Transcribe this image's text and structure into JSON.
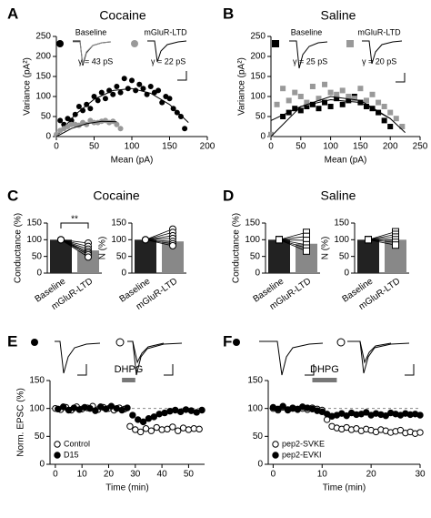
{
  "chart_data": [
    {
      "type": "scatter",
      "panel": "A",
      "title": "Cocaine",
      "xlabel": "Mean (pA)",
      "ylabel": "Variance (pA²)",
      "xlim": [
        0,
        200
      ],
      "xticks": [
        0,
        50,
        100,
        150,
        200
      ],
      "ylim": [
        0,
        250
      ],
      "yticks": [
        0,
        50,
        100,
        150,
        200,
        250
      ],
      "marker": "circle",
      "series": [
        {
          "name": "Baseline",
          "color": "#000000",
          "annotation": "γ = 43 pS",
          "x": [
            5,
            10,
            15,
            20,
            25,
            30,
            35,
            40,
            45,
            50,
            55,
            60,
            65,
            70,
            75,
            80,
            85,
            90,
            95,
            100,
            105,
            110,
            115,
            120,
            125,
            130,
            135,
            140,
            145,
            150,
            155,
            160,
            165,
            170
          ],
          "values": [
            40,
            30,
            45,
            40,
            55,
            75,
            65,
            80,
            70,
            100,
            90,
            110,
            95,
            115,
            105,
            125,
            110,
            145,
            120,
            140,
            115,
            130,
            120,
            105,
            125,
            110,
            115,
            85,
            100,
            95,
            70,
            60,
            50,
            20
          ],
          "fit": {
            "x": [
              0,
              25,
              50,
              75,
              100,
              125,
              150,
              175
            ],
            "values": [
              0,
              55,
              93,
              115,
              120,
              108,
              80,
              35
            ]
          }
        },
        {
          "name": "mGluR-LTD",
          "color": "#999999",
          "annotation": "γ = 22 pS",
          "x": [
            0,
            5,
            10,
            15,
            20,
            25,
            30,
            35,
            40,
            45,
            50,
            55,
            60,
            65,
            70,
            75,
            80,
            85
          ],
          "values": [
            5,
            15,
            20,
            25,
            30,
            30,
            28,
            35,
            30,
            40,
            35,
            35,
            38,
            40,
            35,
            38,
            30,
            20
          ],
          "fit": {
            "x": [
              0,
              20,
              40,
              60,
              80
            ],
            "values": [
              0,
              20,
              32,
              38,
              37
            ]
          }
        }
      ]
    },
    {
      "type": "scatter",
      "panel": "B",
      "title": "Saline",
      "xlabel": "Mean (pA)",
      "ylabel": "Variance (pA²)",
      "xlim": [
        0,
        250
      ],
      "xticks": [
        0,
        50,
        100,
        150,
        200,
        250
      ],
      "ylim": [
        0,
        250
      ],
      "yticks": [
        0,
        50,
        100,
        150,
        200,
        250
      ],
      "marker": "square",
      "series": [
        {
          "name": "Baseline",
          "color": "#000000",
          "annotation": "γ = 25 pS",
          "x": [
            20,
            30,
            40,
            50,
            60,
            70,
            80,
            90,
            100,
            110,
            120,
            130,
            140,
            150,
            160,
            170,
            180,
            190,
            200
          ],
          "values": [
            50,
            60,
            70,
            65,
            75,
            80,
            70,
            85,
            75,
            95,
            80,
            90,
            100,
            85,
            75,
            70,
            60,
            40,
            25
          ],
          "fit": {
            "x": [
              0,
              50,
              100,
              150,
              200
            ],
            "values": [
              40,
              75,
              92,
              85,
              45
            ]
          }
        },
        {
          "name": "mGluR-LTD",
          "color": "#999999",
          "annotation": "γ = 20 pS",
          "x": [
            0,
            10,
            20,
            30,
            40,
            50,
            60,
            70,
            80,
            90,
            100,
            110,
            120,
            130,
            140,
            150,
            160,
            170,
            180,
            190,
            200,
            210,
            220
          ],
          "values": [
            5,
            80,
            120,
            90,
            110,
            100,
            85,
            125,
            95,
            130,
            110,
            105,
            115,
            100,
            95,
            120,
            90,
            105,
            85,
            75,
            60,
            45,
            25
          ],
          "fit": {
            "x": [
              0,
              50,
              100,
              150,
              200,
              225
            ],
            "values": [
              0,
              75,
              100,
              90,
              45,
              10
            ]
          }
        }
      ]
    },
    {
      "type": "bar",
      "panel": "C",
      "title": "Cocaine",
      "ylabel": "Conductance (%)",
      "categories": [
        "Baseline",
        "mGluR-LTD"
      ],
      "values": [
        100,
        68
      ],
      "colors": [
        "#222222",
        "#888888"
      ],
      "ylim": [
        0,
        150
      ],
      "yticks": [
        0,
        50,
        100,
        150
      ],
      "marker": "circle",
      "annotation": "**",
      "paired": {
        "before": [
          100,
          100,
          100,
          100,
          100,
          100,
          100
        ],
        "after": [
          90,
          80,
          72,
          65,
          60,
          55,
          48
        ]
      }
    },
    {
      "type": "bar",
      "ylabel": "N (%)",
      "categories": [
        "Baseline",
        "mGluR-LTD"
      ],
      "values": [
        100,
        95
      ],
      "colors": [
        "#222222",
        "#888888"
      ],
      "ylim": [
        0,
        150
      ],
      "yticks": [
        0,
        50,
        100,
        150
      ],
      "marker": "circle",
      "paired": {
        "before": [
          100,
          100,
          100,
          100,
          100,
          100,
          100
        ],
        "after": [
          132,
          122,
          112,
          104,
          95,
          88,
          82
        ]
      }
    },
    {
      "type": "bar",
      "panel": "D",
      "title": "Saline",
      "ylabel": "Conductance (%)",
      "categories": [
        "Baseline",
        "mGluR-LTD"
      ],
      "values": [
        100,
        88
      ],
      "colors": [
        "#222222",
        "#888888"
      ],
      "ylim": [
        0,
        150
      ],
      "yticks": [
        0,
        50,
        100,
        150
      ],
      "marker": "square",
      "paired": {
        "before": [
          100,
          100,
          100,
          100,
          100,
          100
        ],
        "after": [
          122,
          110,
          98,
          85,
          75,
          66
        ]
      }
    },
    {
      "type": "bar",
      "ylabel": "N (%)",
      "categories": [
        "Baseline",
        "mGluR-LTD"
      ],
      "values": [
        100,
        100
      ],
      "colors": [
        "#222222",
        "#888888"
      ],
      "ylim": [
        0,
        150
      ],
      "yticks": [
        0,
        50,
        100,
        150
      ],
      "marker": "square",
      "paired": {
        "before": [
          100,
          100,
          100,
          100,
          100,
          100
        ],
        "after": [
          124,
          116,
          108,
          100,
          92,
          84
        ]
      }
    },
    {
      "type": "timecourse",
      "panel": "E",
      "xlabel": "Time (min)",
      "ylabel": "Norm. EPSC (%)",
      "xlim": [
        -2,
        56
      ],
      "xticks": [
        0,
        10,
        20,
        30,
        40,
        50
      ],
      "ylim": [
        0,
        150
      ],
      "yticks": [
        0,
        50,
        100,
        150
      ],
      "reference": 100,
      "drug": {
        "label": "DHPG",
        "start": 25,
        "end": 30
      },
      "legend": "bottom-left",
      "series": [
        {
          "name": "Control",
          "color": "#000000",
          "filled": false,
          "x": [
            0,
            2,
            4,
            6,
            8,
            10,
            12,
            14,
            16,
            18,
            20,
            22,
            24,
            26,
            28,
            30,
            32,
            34,
            36,
            38,
            40,
            42,
            44,
            46,
            48,
            50,
            52,
            54
          ],
          "values": [
            100,
            98,
            102,
            97,
            103,
            99,
            101,
            104,
            98,
            102,
            100,
            97,
            101,
            99,
            68,
            62,
            58,
            64,
            60,
            66,
            62,
            63,
            67,
            60,
            65,
            62,
            64,
            63
          ]
        },
        {
          "name": "D15",
          "color": "#000000",
          "filled": true,
          "x": [
            1,
            3,
            5,
            7,
            9,
            11,
            13,
            15,
            17,
            19,
            21,
            23,
            25,
            27,
            29,
            31,
            33,
            35,
            37,
            39,
            41,
            43,
            45,
            47,
            49,
            51,
            53,
            55
          ],
          "values": [
            99,
            103,
            97,
            101,
            98,
            102,
            100,
            96,
            103,
            99,
            104,
            100,
            97,
            101,
            88,
            80,
            76,
            82,
            85,
            90,
            92,
            95,
            97,
            94,
            98,
            96,
            93,
            97
          ]
        }
      ]
    },
    {
      "type": "timecourse",
      "panel": "F",
      "xlabel": "Time (min)",
      "xlim": [
        -1,
        30
      ],
      "xticks": [
        0,
        10,
        20,
        30
      ],
      "ylim": [
        0,
        150
      ],
      "yticks": [
        0,
        50,
        100,
        150
      ],
      "reference": 100,
      "drug": {
        "label": "DHPG",
        "start": 8,
        "end": 13
      },
      "legend": "bottom-left",
      "series": [
        {
          "name": "pep2-SVKE",
          "color": "#000000",
          "filled": false,
          "x": [
            0,
            1,
            2,
            3,
            4,
            5,
            6,
            7,
            8,
            9,
            10,
            11,
            12,
            13,
            14,
            15,
            16,
            17,
            18,
            19,
            20,
            21,
            22,
            23,
            24,
            25,
            26,
            27,
            28,
            29,
            30
          ],
          "values": [
            100,
            97,
            102,
            98,
            101,
            99,
            100,
            98,
            101,
            99,
            97,
            80,
            68,
            65,
            63,
            66,
            62,
            64,
            60,
            63,
            61,
            58,
            62,
            60,
            57,
            59,
            61,
            56,
            58,
            55,
            57
          ]
        },
        {
          "name": "pep2-EVKI",
          "color": "#000000",
          "filled": true,
          "x": [
            0,
            1,
            2,
            3,
            4,
            5,
            6,
            7,
            8,
            9,
            10,
            11,
            12,
            13,
            14,
            15,
            16,
            17,
            18,
            19,
            20,
            21,
            22,
            23,
            24,
            25,
            26,
            27,
            28,
            29,
            30
          ],
          "values": [
            102,
            99,
            104,
            97,
            100,
            98,
            103,
            101,
            99,
            96,
            94,
            90,
            86,
            88,
            91,
            87,
            92,
            89,
            90,
            93,
            88,
            91,
            89,
            87,
            92,
            90,
            88,
            91,
            89,
            90,
            88
          ]
        }
      ]
    }
  ]
}
